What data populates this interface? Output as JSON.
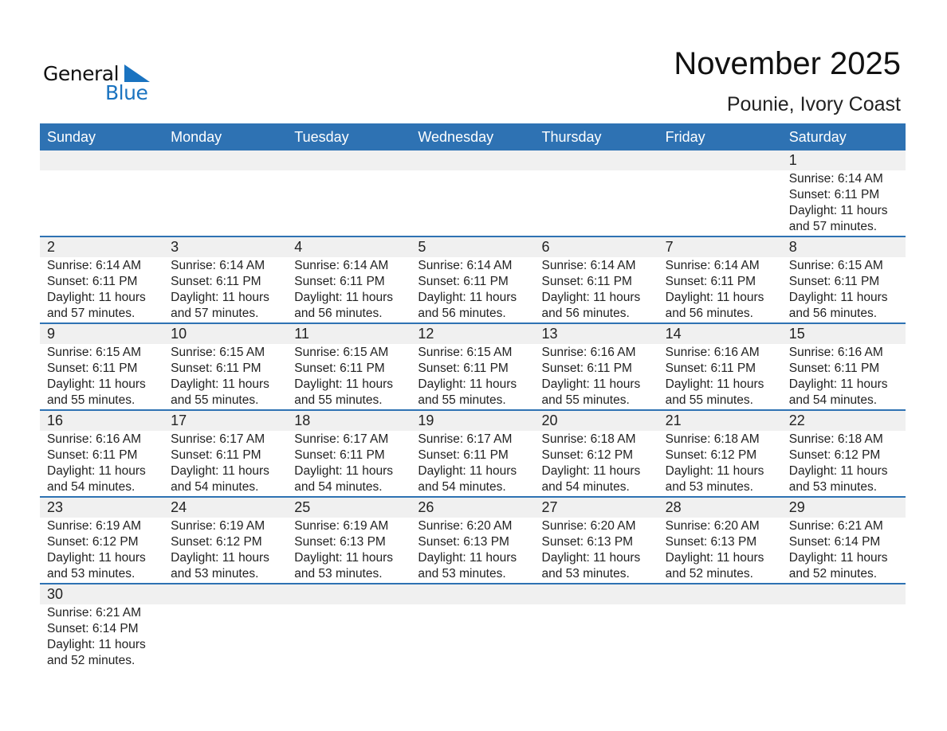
{
  "logo": {
    "line1": "General",
    "line2": "Blue",
    "color": "#1a73c0"
  },
  "title": "November 2025",
  "location": "Pounie, Ivory Coast",
  "header_color": "#2e72b3",
  "weekdays": [
    "Sunday",
    "Monday",
    "Tuesday",
    "Wednesday",
    "Thursday",
    "Friday",
    "Saturday"
  ],
  "weeks": [
    [
      null,
      null,
      null,
      null,
      null,
      null,
      {
        "day": "1",
        "sunrise": "Sunrise: 6:14 AM",
        "sunset": "Sunset: 6:11 PM",
        "daylight": "Daylight: 11 hours",
        "minutes": "and 57 minutes."
      }
    ],
    [
      {
        "day": "2",
        "sunrise": "Sunrise: 6:14 AM",
        "sunset": "Sunset: 6:11 PM",
        "daylight": "Daylight: 11 hours",
        "minutes": "and 57 minutes."
      },
      {
        "day": "3",
        "sunrise": "Sunrise: 6:14 AM",
        "sunset": "Sunset: 6:11 PM",
        "daylight": "Daylight: 11 hours",
        "minutes": "and 57 minutes."
      },
      {
        "day": "4",
        "sunrise": "Sunrise: 6:14 AM",
        "sunset": "Sunset: 6:11 PM",
        "daylight": "Daylight: 11 hours",
        "minutes": "and 56 minutes."
      },
      {
        "day": "5",
        "sunrise": "Sunrise: 6:14 AM",
        "sunset": "Sunset: 6:11 PM",
        "daylight": "Daylight: 11 hours",
        "minutes": "and 56 minutes."
      },
      {
        "day": "6",
        "sunrise": "Sunrise: 6:14 AM",
        "sunset": "Sunset: 6:11 PM",
        "daylight": "Daylight: 11 hours",
        "minutes": "and 56 minutes."
      },
      {
        "day": "7",
        "sunrise": "Sunrise: 6:14 AM",
        "sunset": "Sunset: 6:11 PM",
        "daylight": "Daylight: 11 hours",
        "minutes": "and 56 minutes."
      },
      {
        "day": "8",
        "sunrise": "Sunrise: 6:15 AM",
        "sunset": "Sunset: 6:11 PM",
        "daylight": "Daylight: 11 hours",
        "minutes": "and 56 minutes."
      }
    ],
    [
      {
        "day": "9",
        "sunrise": "Sunrise: 6:15 AM",
        "sunset": "Sunset: 6:11 PM",
        "daylight": "Daylight: 11 hours",
        "minutes": "and 55 minutes."
      },
      {
        "day": "10",
        "sunrise": "Sunrise: 6:15 AM",
        "sunset": "Sunset: 6:11 PM",
        "daylight": "Daylight: 11 hours",
        "minutes": "and 55 minutes."
      },
      {
        "day": "11",
        "sunrise": "Sunrise: 6:15 AM",
        "sunset": "Sunset: 6:11 PM",
        "daylight": "Daylight: 11 hours",
        "minutes": "and 55 minutes."
      },
      {
        "day": "12",
        "sunrise": "Sunrise: 6:15 AM",
        "sunset": "Sunset: 6:11 PM",
        "daylight": "Daylight: 11 hours",
        "minutes": "and 55 minutes."
      },
      {
        "day": "13",
        "sunrise": "Sunrise: 6:16 AM",
        "sunset": "Sunset: 6:11 PM",
        "daylight": "Daylight: 11 hours",
        "minutes": "and 55 minutes."
      },
      {
        "day": "14",
        "sunrise": "Sunrise: 6:16 AM",
        "sunset": "Sunset: 6:11 PM",
        "daylight": "Daylight: 11 hours",
        "minutes": "and 55 minutes."
      },
      {
        "day": "15",
        "sunrise": "Sunrise: 6:16 AM",
        "sunset": "Sunset: 6:11 PM",
        "daylight": "Daylight: 11 hours",
        "minutes": "and 54 minutes."
      }
    ],
    [
      {
        "day": "16",
        "sunrise": "Sunrise: 6:16 AM",
        "sunset": "Sunset: 6:11 PM",
        "daylight": "Daylight: 11 hours",
        "minutes": "and 54 minutes."
      },
      {
        "day": "17",
        "sunrise": "Sunrise: 6:17 AM",
        "sunset": "Sunset: 6:11 PM",
        "daylight": "Daylight: 11 hours",
        "minutes": "and 54 minutes."
      },
      {
        "day": "18",
        "sunrise": "Sunrise: 6:17 AM",
        "sunset": "Sunset: 6:11 PM",
        "daylight": "Daylight: 11 hours",
        "minutes": "and 54 minutes."
      },
      {
        "day": "19",
        "sunrise": "Sunrise: 6:17 AM",
        "sunset": "Sunset: 6:11 PM",
        "daylight": "Daylight: 11 hours",
        "minutes": "and 54 minutes."
      },
      {
        "day": "20",
        "sunrise": "Sunrise: 6:18 AM",
        "sunset": "Sunset: 6:12 PM",
        "daylight": "Daylight: 11 hours",
        "minutes": "and 54 minutes."
      },
      {
        "day": "21",
        "sunrise": "Sunrise: 6:18 AM",
        "sunset": "Sunset: 6:12 PM",
        "daylight": "Daylight: 11 hours",
        "minutes": "and 53 minutes."
      },
      {
        "day": "22",
        "sunrise": "Sunrise: 6:18 AM",
        "sunset": "Sunset: 6:12 PM",
        "daylight": "Daylight: 11 hours",
        "minutes": "and 53 minutes."
      }
    ],
    [
      {
        "day": "23",
        "sunrise": "Sunrise: 6:19 AM",
        "sunset": "Sunset: 6:12 PM",
        "daylight": "Daylight: 11 hours",
        "minutes": "and 53 minutes."
      },
      {
        "day": "24",
        "sunrise": "Sunrise: 6:19 AM",
        "sunset": "Sunset: 6:12 PM",
        "daylight": "Daylight: 11 hours",
        "minutes": "and 53 minutes."
      },
      {
        "day": "25",
        "sunrise": "Sunrise: 6:19 AM",
        "sunset": "Sunset: 6:13 PM",
        "daylight": "Daylight: 11 hours",
        "minutes": "and 53 minutes."
      },
      {
        "day": "26",
        "sunrise": "Sunrise: 6:20 AM",
        "sunset": "Sunset: 6:13 PM",
        "daylight": "Daylight: 11 hours",
        "minutes": "and 53 minutes."
      },
      {
        "day": "27",
        "sunrise": "Sunrise: 6:20 AM",
        "sunset": "Sunset: 6:13 PM",
        "daylight": "Daylight: 11 hours",
        "minutes": "and 53 minutes."
      },
      {
        "day": "28",
        "sunrise": "Sunrise: 6:20 AM",
        "sunset": "Sunset: 6:13 PM",
        "daylight": "Daylight: 11 hours",
        "minutes": "and 52 minutes."
      },
      {
        "day": "29",
        "sunrise": "Sunrise: 6:21 AM",
        "sunset": "Sunset: 6:14 PM",
        "daylight": "Daylight: 11 hours",
        "minutes": "and 52 minutes."
      }
    ],
    [
      {
        "day": "30",
        "sunrise": "Sunrise: 6:21 AM",
        "sunset": "Sunset: 6:14 PM",
        "daylight": "Daylight: 11 hours",
        "minutes": "and 52 minutes."
      },
      null,
      null,
      null,
      null,
      null,
      null
    ]
  ]
}
